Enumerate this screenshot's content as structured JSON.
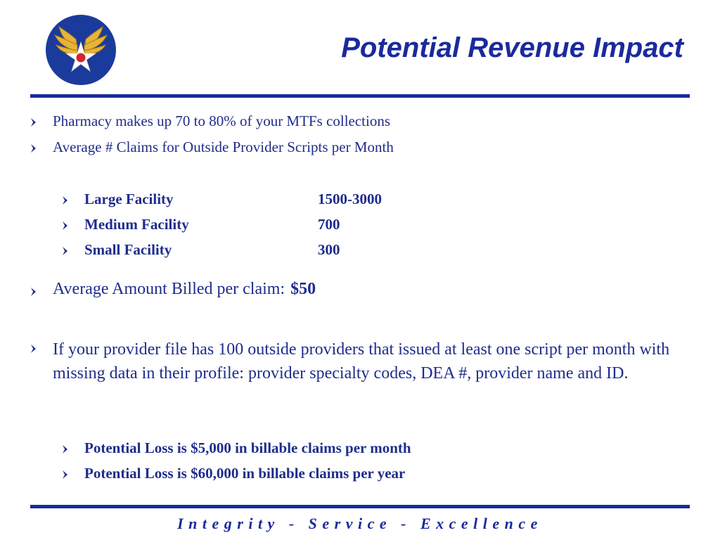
{
  "header": {
    "title": "Potential Revenue Impact"
  },
  "bullets": {
    "b1": "Pharmacy makes up 70 to 80% of your MTFs collections",
    "b2": "Average # Claims for Outside Provider Scripts per Month",
    "facilities": [
      {
        "name": "Large Facility",
        "value": "1500-3000"
      },
      {
        "name": "Medium Facility",
        "value": "700"
      },
      {
        "name": "Small Facility",
        "value": "300"
      }
    ],
    "avg_label": "Average Amount Billed per claim:",
    "avg_value": "$50",
    "provider_paragraph": "If your provider file has 100 outside providers that issued at least one script per month with missing data in their profile: provider specialty codes, DEA #, provider name and ID.",
    "losses": [
      "Potential Loss is $5,000 in billable claims per month",
      "Potential Loss is $60,000 in billable claims per year"
    ]
  },
  "footer": {
    "motto": "Integrity - Service - Excellence"
  },
  "colors": {
    "primary": "#1a2a9c",
    "text": "#1f2d8c",
    "logo_gold": "#e7b43a",
    "logo_red": "#d3272f"
  },
  "icons": {
    "logo": "air-force-wings-star-logo",
    "bullet": "diamond-bullet-icon"
  }
}
